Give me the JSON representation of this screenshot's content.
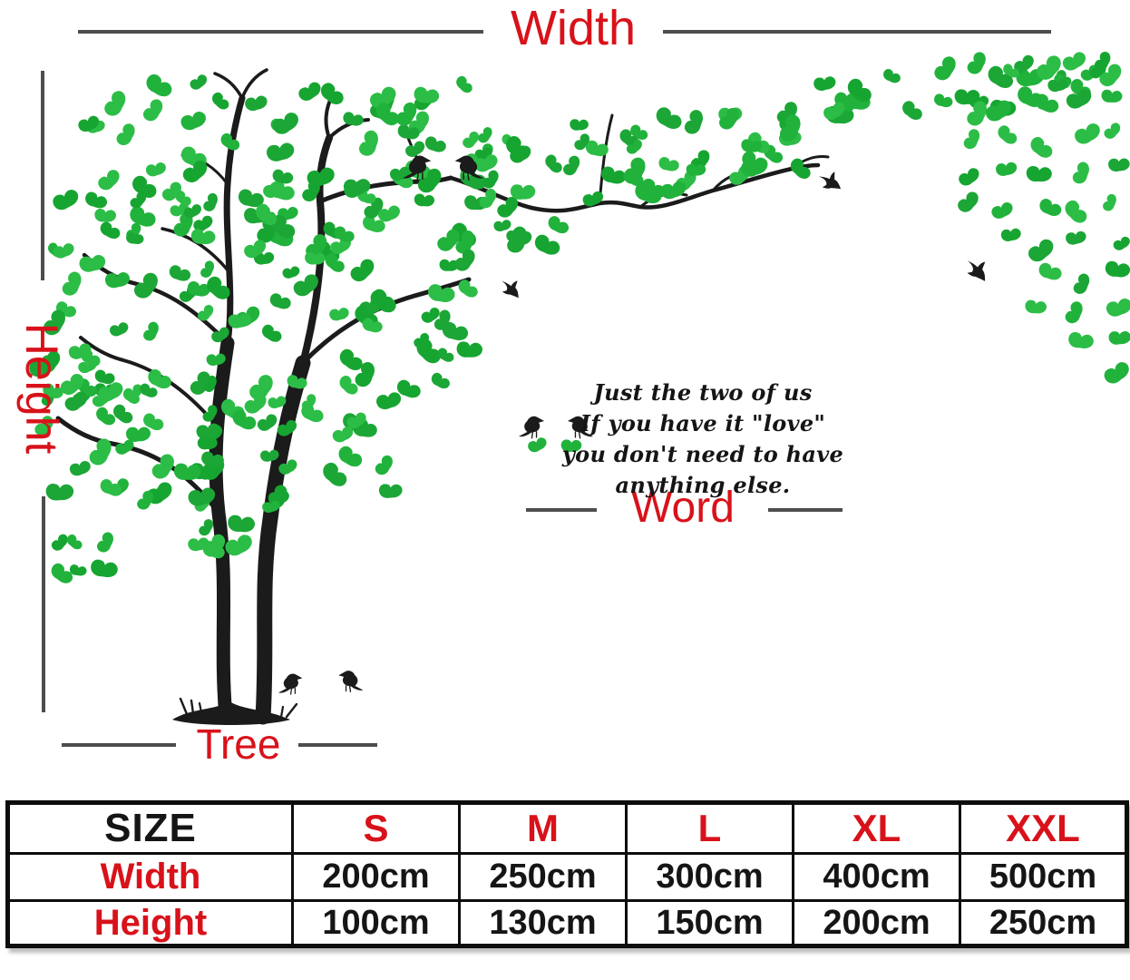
{
  "product_diagram": {
    "labels": {
      "width": "Width",
      "height": "Height",
      "tree": "Tree",
      "word": "Word"
    },
    "quote": {
      "line1": "Just the two of us",
      "line2": "If you have it \"love\"",
      "line3": "you don't need to have anything else."
    }
  },
  "size_table": {
    "header": [
      "SIZE",
      "S",
      "M",
      "L",
      "XL",
      "XXL"
    ],
    "rows": [
      {
        "label": "Width",
        "values": [
          "200cm",
          "250cm",
          "300cm",
          "400cm",
          "500cm"
        ]
      },
      {
        "label": "Height",
        "values": [
          "100cm",
          "130cm",
          "150cm",
          "200cm",
          "250cm"
        ]
      }
    ]
  },
  "icons": {
    "tree": "tree-silhouette",
    "leaf": "leaf",
    "perched_bird": "perched-bird",
    "flying_bird": "flying-bird"
  },
  "colors": {
    "accent_red": "#d8121a",
    "leaf_green": "#21b23c",
    "silhouette": "#1b1b1b",
    "dim_line": "#4d4d4d",
    "table_border": "#0d0d0d"
  }
}
